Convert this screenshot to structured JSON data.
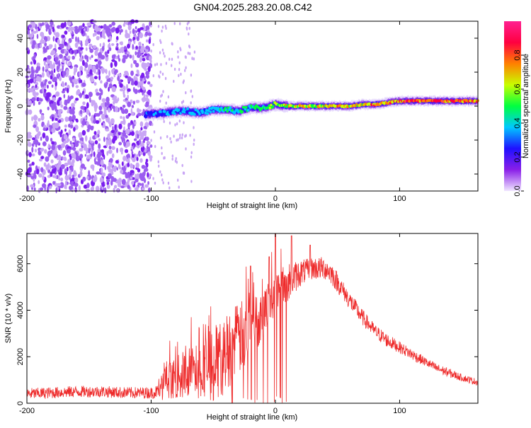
{
  "title": "GN04.2025.283.20.08.C42",
  "colors": {
    "signal_line": "#ee2b2b",
    "scatter_noise": "#7a1df0",
    "scatter_light": "#c9a6f5"
  },
  "chart_data": [
    {
      "type": "heatmap",
      "name": "spectrogram",
      "xlabel": "Height of straight line (km)",
      "ylabel": "Frequency (Hz)",
      "xlim": [
        -200,
        163
      ],
      "ylim": [
        -50,
        50
      ],
      "x_ticks": [
        -200,
        -100,
        0,
        100
      ],
      "x_tick_labels": [
        "-200",
        "-100",
        "0",
        "100"
      ],
      "y_ticks": [
        -40,
        -20,
        0,
        20,
        40
      ],
      "y_tick_labels": [
        "-40",
        "-20",
        "0",
        "20",
        "40"
      ],
      "colorbar": {
        "label": "Normalized spectral amplitude",
        "range": [
          0,
          1
        ],
        "ticks": [
          0.0,
          0.2,
          0.4,
          0.6,
          0.8
        ],
        "tick_labels": [
          "0.0",
          "0.2",
          "0.4",
          "0.6",
          "0.8"
        ],
        "colormap": [
          "#f0e6ff",
          "#8a1fe8",
          "#1f10ff",
          "#00c8ff",
          "#00ff40",
          "#c8ff00",
          "#ff8000",
          "#ff0040",
          "#ff2090"
        ]
      },
      "noise_region_x": [
        -200,
        -100
      ],
      "sparse_region_x": [
        -100,
        -65
      ],
      "ridge": {
        "x": [
          -105,
          -90,
          -80,
          -70,
          -60,
          -50,
          -40,
          -30,
          -20,
          -10,
          0,
          10,
          20,
          30,
          40,
          50,
          60,
          70,
          80,
          90,
          100,
          110,
          120,
          130,
          140,
          150,
          163
        ],
        "frequency_hz": [
          -5,
          -4,
          -3,
          -3,
          -4,
          -2,
          -2,
          -3,
          -1,
          -1,
          1,
          0,
          0,
          0,
          0,
          0,
          0,
          1,
          1,
          2,
          3,
          3,
          3,
          3,
          3,
          3,
          3
        ],
        "amplitude": [
          0.3,
          0.35,
          0.4,
          0.35,
          0.4,
          0.4,
          0.45,
          0.45,
          0.5,
          0.5,
          0.6,
          0.65,
          0.75,
          0.6,
          0.7,
          0.75,
          0.65,
          0.7,
          0.8,
          0.8,
          0.85,
          0.9,
          0.9,
          0.9,
          0.85,
          0.85,
          0.8
        ]
      }
    },
    {
      "type": "line",
      "name": "snr",
      "xlabel": "Height of straight line (km)",
      "ylabel": "SNR (10 * v/v)",
      "xlim": [
        -200,
        163
      ],
      "ylim": [
        0,
        7300
      ],
      "x_ticks": [
        -200,
        -100,
        0,
        100
      ],
      "x_tick_labels": [
        "-200",
        "-100",
        "0",
        "100"
      ],
      "y_ticks": [
        0,
        2000,
        4000,
        6000
      ],
      "y_tick_labels": [
        "0",
        "2000",
        "4000",
        "6000"
      ],
      "series": [
        {
          "name": "SNR",
          "x": [
            -200,
            -180,
            -160,
            -140,
            -120,
            -100,
            -95,
            -90,
            -85,
            -80,
            -75,
            -70,
            -65,
            -60,
            -55,
            -50,
            -45,
            -40,
            -35,
            -30,
            -25,
            -20,
            -15,
            -10,
            -5,
            0,
            5,
            10,
            15,
            20,
            25,
            30,
            35,
            40,
            45,
            50,
            55,
            60,
            70,
            80,
            90,
            100,
            110,
            120,
            130,
            140,
            150,
            163
          ],
          "y": [
            400,
            450,
            500,
            500,
            450,
            450,
            500,
            900,
            1000,
            1100,
            1200,
            1300,
            1400,
            1500,
            1700,
            1900,
            2000,
            2200,
            2500,
            2700,
            3000,
            3200,
            3500,
            3900,
            4300,
            4700,
            5000,
            5200,
            5400,
            5600,
            5700,
            5800,
            5800,
            5800,
            5600,
            5200,
            4800,
            4400,
            3700,
            3100,
            2700,
            2400,
            2100,
            1800,
            1500,
            1300,
            1100,
            900
          ],
          "noise_amplitude": [
            250,
            250,
            250,
            250,
            250,
            250,
            300,
            600,
            800,
            900,
            1000,
            1100,
            1200,
            1300,
            1400,
            1500,
            1500,
            1600,
            1700,
            1600,
            1500,
            1300,
            1200,
            1100,
            1000,
            1000,
            900,
            800,
            700,
            600,
            500,
            500,
            500,
            500,
            500,
            450,
            400,
            400,
            350,
            300,
            300,
            250,
            250,
            200,
            200,
            200,
            150,
            150
          ],
          "peaks": [
            [
              -20,
              5900
            ],
            [
              -5,
              6300
            ],
            [
              0,
              7300
            ],
            [
              13,
              7200
            ],
            [
              28,
              6800
            ]
          ]
        }
      ]
    }
  ]
}
